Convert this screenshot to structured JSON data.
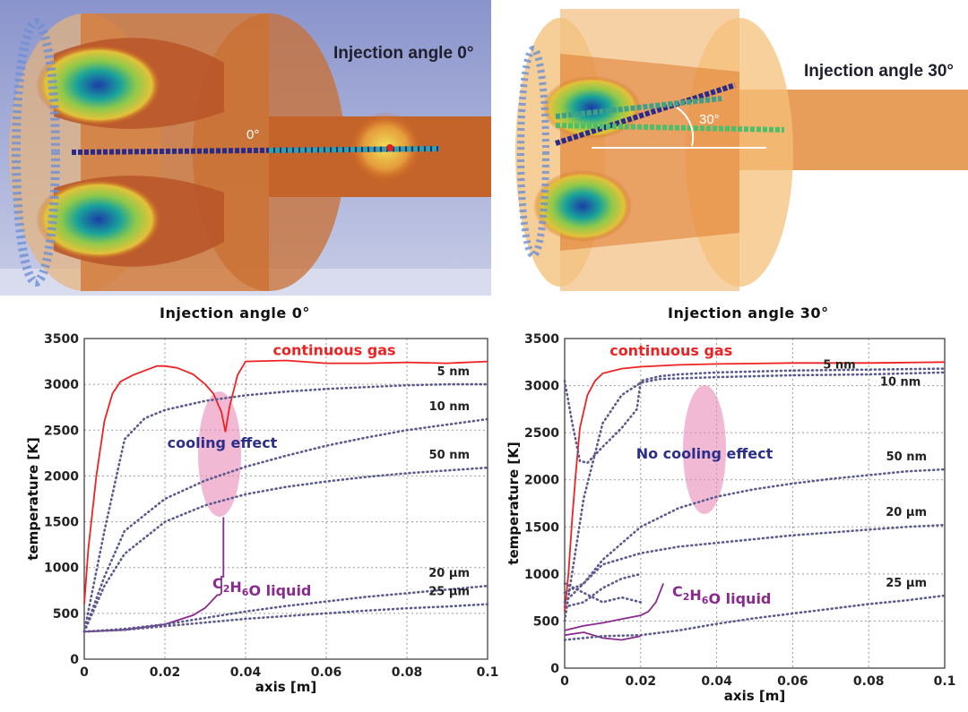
{
  "sim_panels": [
    {
      "title": "Injection angle 0°",
      "angle_label": "0°"
    },
    {
      "title": "Injection angle 30°",
      "angle_label": "30°"
    }
  ],
  "chart_data": [
    {
      "type": "line",
      "title": "Injection angle 0°",
      "xlabel": "axis [m]",
      "ylabel": "temperature [K]",
      "xlim": [
        0,
        0.1
      ],
      "ylim": [
        0,
        3500
      ],
      "xticks": [
        "0",
        "0.02",
        "0.04",
        "0.06",
        "0.08",
        "0.1"
      ],
      "yticks": [
        "0",
        "500",
        "1000",
        "1500",
        "2000",
        "2500",
        "3000",
        "3500"
      ],
      "grid": true,
      "annotation": "cooling effect",
      "liquid_label": "C2H6O liquid",
      "liquid_label_parts": {
        "c": "C",
        "s1": "2",
        "h": "H",
        "s2": "6",
        "o": "O liquid"
      },
      "series": [
        {
          "name": "continuous gas",
          "style": "solid",
          "color": "#ee2222",
          "x": [
            0,
            0.001,
            0.003,
            0.005,
            0.007,
            0.009,
            0.012,
            0.015,
            0.018,
            0.02,
            0.023,
            0.027,
            0.03,
            0.032,
            0.034,
            0.035,
            0.036,
            0.038,
            0.04,
            0.05,
            0.06,
            0.07,
            0.08,
            0.09,
            0.1
          ],
          "y": [
            600,
            1200,
            2000,
            2600,
            2900,
            3030,
            3100,
            3150,
            3200,
            3200,
            3180,
            3110,
            3000,
            2900,
            2700,
            2480,
            2750,
            3100,
            3250,
            3260,
            3230,
            3230,
            3240,
            3230,
            3250
          ]
        },
        {
          "name": "5 nm",
          "style": "dotted",
          "color": "#5a5a8f",
          "x": [
            0,
            0.005,
            0.01,
            0.015,
            0.02,
            0.03,
            0.04,
            0.05,
            0.06,
            0.07,
            0.08,
            0.09,
            0.1
          ],
          "y": [
            300,
            1400,
            2400,
            2630,
            2720,
            2820,
            2880,
            2920,
            2950,
            2970,
            2990,
            3000,
            3000
          ]
        },
        {
          "name": "10 nm",
          "style": "dotted",
          "color": "#5a5a8f",
          "x": [
            0,
            0.005,
            0.01,
            0.02,
            0.03,
            0.04,
            0.05,
            0.06,
            0.07,
            0.08,
            0.09,
            0.1
          ],
          "y": [
            300,
            900,
            1400,
            1750,
            1950,
            2100,
            2220,
            2330,
            2420,
            2500,
            2560,
            2620
          ]
        },
        {
          "name": "50 nm",
          "style": "dotted",
          "color": "#5a5a8f",
          "x": [
            0,
            0.005,
            0.01,
            0.02,
            0.03,
            0.04,
            0.05,
            0.06,
            0.07,
            0.08,
            0.09,
            0.1
          ],
          "y": [
            300,
            800,
            1150,
            1500,
            1680,
            1800,
            1880,
            1940,
            1990,
            2030,
            2060,
            2090
          ]
        },
        {
          "name": "C2H6O liquid",
          "style": "solid",
          "color": "#8a2a8f",
          "x": [
            0,
            0.01,
            0.02,
            0.027,
            0.03,
            0.033,
            0.0335,
            0.034,
            0.034,
            0.0345,
            0.0345
          ],
          "y": [
            300,
            320,
            380,
            480,
            560,
            700,
            700,
            720,
            900,
            900,
            1550
          ]
        },
        {
          "name": "20 µm",
          "style": "dotted",
          "color": "#5a5a8f",
          "x": [
            0,
            0.01,
            0.02,
            0.03,
            0.04,
            0.05,
            0.06,
            0.07,
            0.08,
            0.09,
            0.1
          ],
          "y": [
            300,
            330,
            380,
            450,
            520,
            580,
            630,
            680,
            720,
            760,
            800
          ]
        },
        {
          "name": "25 µm",
          "style": "dotted",
          "color": "#5a5a8f",
          "x": [
            0,
            0.01,
            0.02,
            0.03,
            0.04,
            0.05,
            0.06,
            0.07,
            0.08,
            0.09,
            0.1
          ],
          "y": [
            300,
            320,
            360,
            400,
            440,
            470,
            500,
            530,
            555,
            575,
            600
          ]
        }
      ]
    },
    {
      "type": "line",
      "title": "Injection angle 30°",
      "xlabel": "axis [m]",
      "ylabel": "temperature [K]",
      "xlim": [
        0,
        0.1
      ],
      "ylim": [
        0,
        3500
      ],
      "xticks": [
        "0",
        "0.02",
        "0.04",
        "0.06",
        "0.08",
        "0.1"
      ],
      "yticks": [
        "0",
        "500",
        "1000",
        "1500",
        "2000",
        "2500",
        "3000",
        "3500"
      ],
      "grid": true,
      "annotation": "No cooling effect",
      "liquid_label": "C2H6O liquid",
      "liquid_label_parts": {
        "c": "C",
        "s1": "2",
        "h": "H",
        "s2": "6",
        "o": "O liquid"
      },
      "series": [
        {
          "name": "continuous gas",
          "style": "solid",
          "color": "#ee2222",
          "x": [
            0,
            0.001,
            0.002,
            0.003,
            0.004,
            0.006,
            0.008,
            0.01,
            0.015,
            0.02,
            0.03,
            0.04,
            0.05,
            0.06,
            0.07,
            0.08,
            0.09,
            0.1
          ],
          "y": [
            600,
            1000,
            1600,
            2100,
            2550,
            2900,
            3050,
            3130,
            3180,
            3200,
            3220,
            3230,
            3235,
            3240,
            3240,
            3240,
            3245,
            3250
          ]
        },
        {
          "name": "5 nm",
          "style": "dotted",
          "color": "#5a5a8f",
          "x": [
            0,
            0.002,
            0.004,
            0.006,
            0.01,
            0.015,
            0.019,
            0.02,
            0.025,
            0.03,
            0.04,
            0.06,
            0.08,
            0.1
          ],
          "y": [
            3050,
            2600,
            2200,
            2180,
            2350,
            2550,
            2750,
            3050,
            3100,
            3120,
            3140,
            3160,
            3170,
            3180
          ]
        },
        {
          "name": "10 nm",
          "style": "dotted",
          "color": "#5a5a8f",
          "x": [
            0,
            0.005,
            0.01,
            0.015,
            0.02,
            0.025,
            0.04,
            0.06,
            0.08,
            0.1
          ],
          "y": [
            500,
            1800,
            2600,
            2900,
            3030,
            3070,
            3090,
            3110,
            3120,
            3140
          ]
        },
        {
          "name": "50 nm",
          "style": "dotted",
          "color": "#5a5a8f",
          "x": [
            0,
            0.005,
            0.01,
            0.02,
            0.03,
            0.04,
            0.05,
            0.06,
            0.07,
            0.08,
            0.09,
            0.1
          ],
          "y": [
            700,
            900,
            1150,
            1500,
            1700,
            1820,
            1900,
            1960,
            2010,
            2050,
            2090,
            2110
          ]
        },
        {
          "name": "20 µm",
          "style": "dotted",
          "color": "#5a5a8f",
          "x": [
            0,
            0.005,
            0.01,
            0.02,
            0.03,
            0.04,
            0.05,
            0.06,
            0.07,
            0.08,
            0.09,
            0.1
          ],
          "y": [
            800,
            900,
            1100,
            1220,
            1290,
            1330,
            1370,
            1410,
            1440,
            1470,
            1500,
            1520
          ]
        },
        {
          "name": "25 µm",
          "style": "dotted",
          "color": "#5a5a8f",
          "x": [
            0,
            0.005,
            0.01,
            0.02,
            0.03,
            0.04,
            0.05,
            0.06,
            0.07,
            0.08,
            0.09,
            0.1
          ],
          "y": [
            300,
            320,
            340,
            350,
            400,
            470,
            530,
            580,
            630,
            680,
            720,
            770
          ]
        },
        {
          "name": "C2H6O liquid",
          "style": "solid",
          "color": "#8a2a8f",
          "x": [
            0,
            0.005,
            0.01,
            0.015,
            0.02,
            0.022,
            0.024,
            0.025,
            0.026
          ],
          "y": [
            400,
            450,
            480,
            520,
            560,
            600,
            700,
            800,
            900
          ]
        }
      ],
      "extra_traces": [
        {
          "style": "dotted",
          "color": "#5a5a8f",
          "x": [
            0,
            0.005,
            0.01,
            0.015,
            0.02
          ],
          "y": [
            650,
            700,
            850,
            950,
            1000
          ]
        },
        {
          "style": "dotted",
          "color": "#5a5a8f",
          "x": [
            0,
            0.005,
            0.01,
            0.015,
            0.02
          ],
          "y": [
            900,
            800,
            700,
            750,
            700
          ]
        },
        {
          "style": "solid",
          "color": "#8a2a8f",
          "x": [
            0,
            0.005,
            0.01,
            0.015,
            0.02
          ],
          "y": [
            350,
            380,
            320,
            300,
            340
          ]
        }
      ],
      "series_label_positions": {
        "5 nm": [
          0.068,
          3180
        ],
        "10 nm": [
          0.083,
          3000
        ]
      }
    }
  ]
}
